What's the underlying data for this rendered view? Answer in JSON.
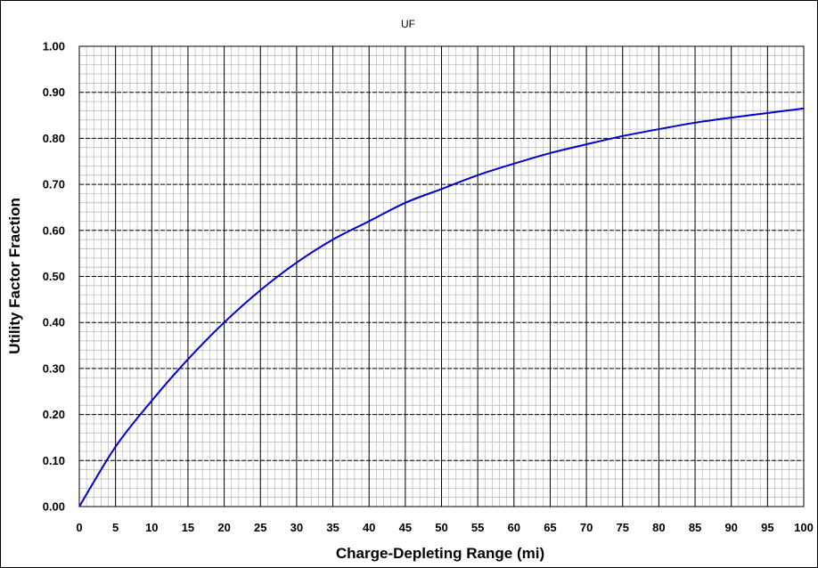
{
  "chart_data": {
    "type": "line",
    "title": "UF",
    "xlabel": "Charge-Depleting Range (mi)",
    "ylabel": "Utility Factor Fraction",
    "xlim": [
      0,
      100
    ],
    "ylim": [
      0,
      1.0
    ],
    "x_ticks": [
      "0",
      "5",
      "10",
      "15",
      "20",
      "25",
      "30",
      "35",
      "40",
      "45",
      "50",
      "55",
      "60",
      "65",
      "70",
      "75",
      "80",
      "85",
      "90",
      "95",
      "100"
    ],
    "y_ticks": [
      "0.00",
      "0.10",
      "0.20",
      "0.30",
      "0.40",
      "0.50",
      "0.60",
      "0.70",
      "0.80",
      "0.90",
      "1.00"
    ],
    "grid": true,
    "line_color": "#0000cc",
    "series": [
      {
        "x": [
          0,
          5,
          10,
          15,
          20,
          25,
          30,
          35,
          40,
          45,
          50,
          55,
          60,
          65,
          70,
          75,
          80,
          85,
          90,
          95,
          100
        ],
        "y": [
          0.0,
          0.13,
          0.23,
          0.32,
          0.4,
          0.47,
          0.53,
          0.58,
          0.62,
          0.66,
          0.69,
          0.72,
          0.745,
          0.768,
          0.787,
          0.805,
          0.82,
          0.834,
          0.845,
          0.855,
          0.865
        ]
      }
    ]
  }
}
